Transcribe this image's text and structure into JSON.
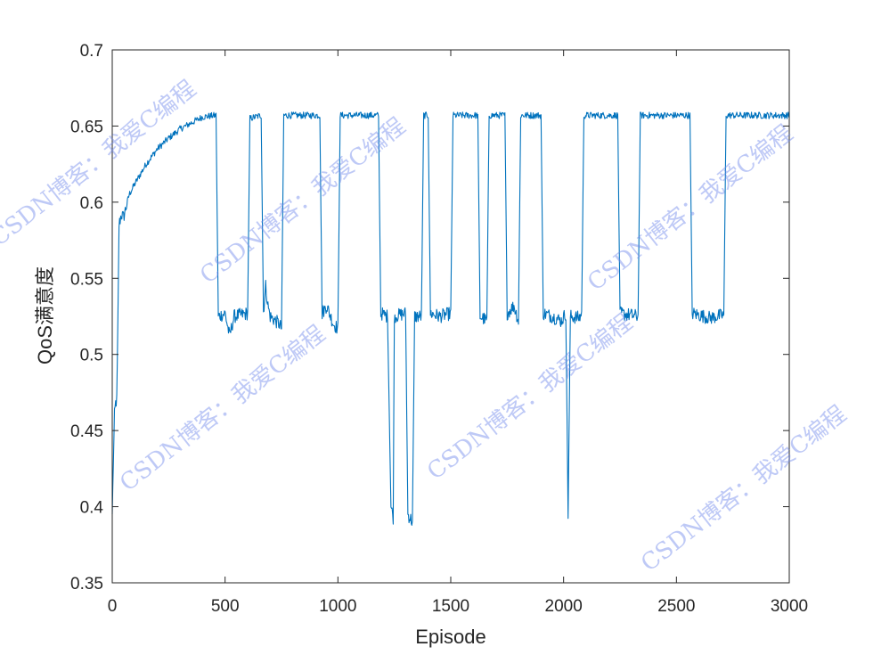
{
  "chart_data": {
    "type": "line",
    "xlabel": "Episode",
    "ylabel": "QoS满意度",
    "xlim": [
      0,
      3000
    ],
    "ylim": [
      0.35,
      0.7
    ],
    "xticks": [
      0,
      500,
      1000,
      1500,
      2000,
      2500,
      3000
    ],
    "yticks": [
      0.35,
      0.4,
      0.45,
      0.5,
      0.55,
      0.6,
      0.65,
      0.7
    ],
    "xtick_labels": [
      "0",
      "500",
      "1000",
      "1500",
      "2000",
      "2500",
      "3000"
    ],
    "ytick_labels": [
      "0.35",
      "0.4",
      "0.45",
      "0.5",
      "0.55",
      "0.6",
      "0.65",
      "0.7"
    ],
    "grid": false,
    "line_color": "#0072BD",
    "series": [
      {
        "points": [
          [
            0,
            0.395
          ],
          [
            5,
            0.43
          ],
          [
            10,
            0.46
          ],
          [
            15,
            0.468
          ],
          [
            20,
            0.47
          ],
          [
            25,
            0.52
          ],
          [
            30,
            0.585
          ],
          [
            40,
            0.592
          ],
          [
            50,
            0.59
          ],
          [
            75,
            0.605
          ],
          [
            100,
            0.612
          ],
          [
            150,
            0.625
          ],
          [
            200,
            0.635
          ],
          [
            250,
            0.642
          ],
          [
            300,
            0.648
          ],
          [
            350,
            0.652
          ],
          [
            400,
            0.656
          ],
          [
            460,
            0.657
          ],
          [
            470,
            0.525
          ],
          [
            500,
            0.527
          ],
          [
            520,
            0.512
          ],
          [
            540,
            0.525
          ],
          [
            600,
            0.527
          ],
          [
            610,
            0.655
          ],
          [
            660,
            0.657
          ],
          [
            670,
            0.528
          ],
          [
            680,
            0.545
          ],
          [
            690,
            0.532
          ],
          [
            700,
            0.525
          ],
          [
            740,
            0.52
          ],
          [
            750,
            0.517
          ],
          [
            760,
            0.657
          ],
          [
            920,
            0.657
          ],
          [
            930,
            0.527
          ],
          [
            950,
            0.532
          ],
          [
            980,
            0.52
          ],
          [
            1000,
            0.517
          ],
          [
            1010,
            0.657
          ],
          [
            1180,
            0.657
          ],
          [
            1190,
            0.527
          ],
          [
            1220,
            0.525
          ],
          [
            1235,
            0.4
          ],
          [
            1245,
            0.393
          ],
          [
            1250,
            0.525
          ],
          [
            1300,
            0.527
          ],
          [
            1310,
            0.395
          ],
          [
            1330,
            0.39
          ],
          [
            1340,
            0.525
          ],
          [
            1370,
            0.525
          ],
          [
            1380,
            0.657
          ],
          [
            1400,
            0.657
          ],
          [
            1410,
            0.527
          ],
          [
            1450,
            0.525
          ],
          [
            1500,
            0.527
          ],
          [
            1510,
            0.657
          ],
          [
            1620,
            0.657
          ],
          [
            1630,
            0.525
          ],
          [
            1660,
            0.522
          ],
          [
            1670,
            0.657
          ],
          [
            1740,
            0.657
          ],
          [
            1750,
            0.527
          ],
          [
            1780,
            0.532
          ],
          [
            1800,
            0.522
          ],
          [
            1810,
            0.657
          ],
          [
            1900,
            0.657
          ],
          [
            1910,
            0.527
          ],
          [
            1950,
            0.525
          ],
          [
            1990,
            0.522
          ],
          [
            2010,
            0.527
          ],
          [
            2020,
            0.395
          ],
          [
            2030,
            0.525
          ],
          [
            2070,
            0.524
          ],
          [
            2080,
            0.527
          ],
          [
            2090,
            0.657
          ],
          [
            2240,
            0.657
          ],
          [
            2250,
            0.527
          ],
          [
            2330,
            0.525
          ],
          [
            2340,
            0.657
          ],
          [
            2560,
            0.657
          ],
          [
            2570,
            0.527
          ],
          [
            2650,
            0.524
          ],
          [
            2710,
            0.526
          ],
          [
            2720,
            0.657
          ],
          [
            3000,
            0.657
          ]
        ]
      }
    ]
  },
  "watermarks": [
    "CSDN博客：我爱C编程",
    "CSDN博客：我爱C编程",
    "CSDN博客：我爱C编程",
    "CSDN博客：我爱C编程",
    "CSDN博客：我爱C编程",
    "CSDN博客：我爱C编程"
  ]
}
